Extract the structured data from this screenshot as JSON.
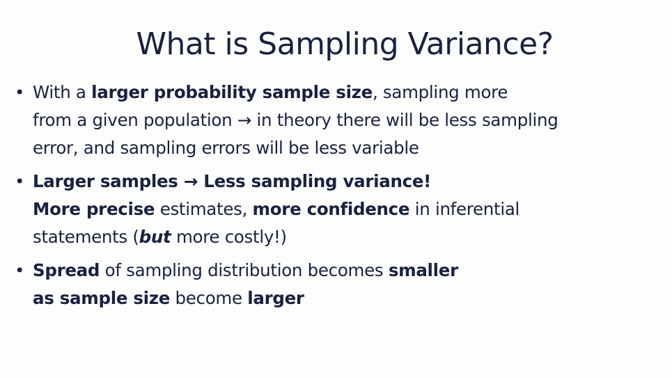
{
  "slide": {
    "title": "What is Sampling Variance?",
    "bullet_glyph": "•",
    "bullets": [
      {
        "lines": [
          [
            {
              "text": "With a ",
              "style": "normal"
            },
            {
              "text": "larger probability sample size",
              "style": "bold"
            },
            {
              "text": ", sampling more",
              "style": "normal"
            }
          ],
          [
            {
              "text": "from a given population → in theory there will be less sampling",
              "style": "normal"
            }
          ],
          [
            {
              "text": "error, and sampling errors will be less variable",
              "style": "normal"
            }
          ]
        ]
      },
      {
        "lines": [
          [
            {
              "text": "Larger samples → Less sampling variance!",
              "style": "bold"
            }
          ],
          [
            {
              "text": "More precise",
              "style": "bold"
            },
            {
              "text": " estimates, ",
              "style": "normal"
            },
            {
              "text": "more confidence",
              "style": "bold"
            },
            {
              "text": " in inferential",
              "style": "normal"
            }
          ],
          [
            {
              "text": "statements (",
              "style": "normal"
            },
            {
              "text": "but",
              "style": "bold-italic"
            },
            {
              "text": " more costly!)",
              "style": "normal"
            }
          ]
        ]
      },
      {
        "lines": [
          [
            {
              "text": "Spread",
              "style": "bold"
            },
            {
              "text": " of sampling distribution becomes ",
              "style": "normal"
            },
            {
              "text": "smaller",
              "style": "bold"
            }
          ],
          [
            {
              "text": "as sample size",
              "style": "bold"
            },
            {
              "text": " become ",
              "style": "normal"
            },
            {
              "text": "larger",
              "style": "bold"
            }
          ]
        ]
      }
    ]
  }
}
